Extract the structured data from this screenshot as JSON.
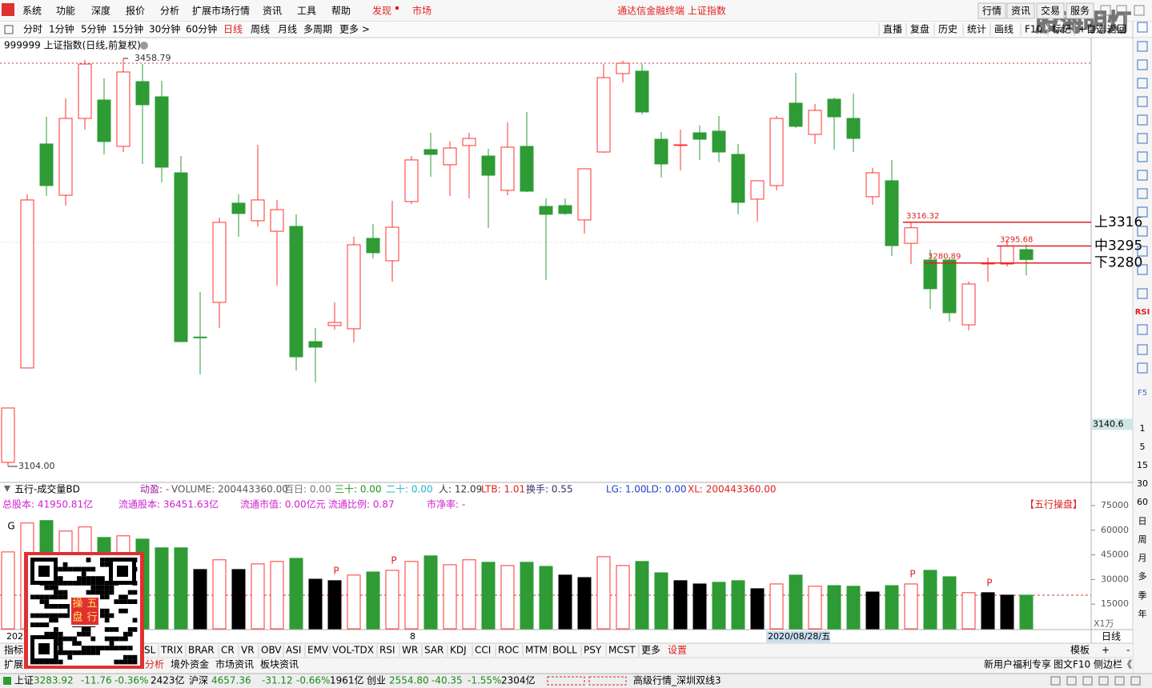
{
  "menu": {
    "items": [
      "系统",
      "功能",
      "深度",
      "报价",
      "分析",
      "扩展市场行情",
      "资讯",
      "工具",
      "帮助"
    ],
    "discover": "发现",
    "market": "市场",
    "title": "通达信金融终端 上证指数",
    "buttons": [
      "行情",
      "资讯",
      "交易",
      "服务"
    ]
  },
  "watermark": "股海明灯",
  "toolbar": {
    "periods": [
      "分时",
      "1分钟",
      "5分钟",
      "15分钟",
      "30分钟",
      "60分钟",
      "日线",
      "周线",
      "月线",
      "多周期",
      "更多 >"
    ],
    "tools": [
      "直播",
      "复盘",
      "历史",
      "统计",
      "画线",
      "F10",
      "标记",
      "+自选",
      "返回"
    ]
  },
  "kline": {
    "title": "999999 上证指数(日线,前复权)",
    "up_color": "#ff3232",
    "down_color": "#2e9b35",
    "open": [
      3107.5,
      3189.6,
      3384.4,
      3339.8,
      3406.6,
      3422.6,
      3382.3,
      3438.6,
      3425.4,
      3359.3,
      3216.5,
      3246.6,
      3332.9,
      3317.6,
      3308.5,
      3312.7,
      3212.5,
      3226.5,
      3223.7,
      3302.3,
      3282.8,
      3334.3,
      3379.5,
      3366.3,
      3383.0,
      3373.9,
      3344.0,
      3382.3,
      3330.1,
      3330.8,
      3318.3,
      3377.4,
      3445.6,
      3447.7,
      3388.5,
      3383.0,
      3394.1,
      3395.5,
      3375.3,
      3336.4,
      3348.2,
      3419.9,
      3392.7,
      3423.3,
      3406.6,
      3338.5,
      3352.4,
      3298.0,
      3283.5,
      3283.5,
      3227.1,
      3280.0,
      3280.0,
      3292.5
    ],
    "high": [
      3154.8,
      3340.5,
      3408.0,
      3424.0,
      3457.5,
      3441.4,
      3458.79,
      3453.9,
      3439.3,
      3373.9,
      3255.7,
      3320.4,
      3340.5,
      3383.7,
      3335.7,
      3323.2,
      3224.4,
      3246.6,
      3303.7,
      3314.8,
      3335.0,
      3373.9,
      3394.1,
      3386.5,
      3394.1,
      3380.2,
      3403.2,
      3412.2,
      3337.1,
      3337.1,
      3362.8,
      3453.9,
      3456.9,
      3453.9,
      3394.8,
      3396.9,
      3400.4,
      3408.7,
      3384.4,
      3353.0,
      3408.7,
      3446.3,
      3419.2,
      3424.7,
      3428.2,
      3363.5,
      3370.5,
      3316.32,
      3292.5,
      3286.3,
      3264.7,
      3285.6,
      3301.0,
      3297.0
    ],
    "low": [
      3104.0,
      3189.6,
      3339.2,
      3330.8,
      3396.9,
      3375.3,
      3377.4,
      3367.0,
      3351.0,
      3212.5,
      3184.0,
      3224.4,
      3303.7,
      3312.7,
      3261.2,
      3187.5,
      3177.1,
      3223.0,
      3211.8,
      3284.9,
      3264.7,
      3332.2,
      3355.9,
      3339.2,
      3337.1,
      3311.3,
      3339.8,
      3342.6,
      3266.1,
      3322.5,
      3306.5,
      3376.7,
      3437.9,
      3410.1,
      3355.2,
      3361.4,
      3370.5,
      3368.4,
      3323.2,
      3316.9,
      3344.0,
      3398.3,
      3384.4,
      3379.5,
      3377.4,
      3331.5,
      3287.0,
      3280.0,
      3241.0,
      3229.9,
      3222.3,
      3264.7,
      3277.9,
      3270.0
    ],
    "close": [
      3154.8,
      3335.7,
      3348.2,
      3406.6,
      3453.9,
      3386.5,
      3447.0,
      3418.5,
      3364.2,
      3212.5,
      3216.0,
      3316.2,
      3323.9,
      3335.7,
      3327.3,
      3199.3,
      3207.7,
      3229.2,
      3296.7,
      3289.8,
      3312.0,
      3370.5,
      3375.3,
      3380.9,
      3389.2,
      3357.2,
      3381.6,
      3343.3,
      3323.2,
      3323.9,
      3362.8,
      3442.1,
      3454.6,
      3412.2,
      3367.0,
      3383.7,
      3388.5,
      3377.4,
      3333.6,
      3352.4,
      3406.6,
      3399.7,
      3413.6,
      3408.0,
      3389.2,
      3359.3,
      3296.0,
      3311.5,
      3258.5,
      3237.6,
      3262.6,
      3280.7,
      3295.68,
      3283.92
    ],
    "max_marker": 3458.79,
    "min_marker": {
      "value": 3104,
      "label": "3104.00"
    },
    "cursor_price": 3140.6,
    "levels": [
      {
        "value": 3316.32,
        "tag": "上3316"
      },
      {
        "value": 3295.68,
        "tag": "中3295"
      },
      {
        "value": 3280.89,
        "tag": "下3280"
      }
    ]
  },
  "volume": {
    "title": "五行-成交量BD",
    "readouts": [
      {
        "text": "动盈: -",
        "color": "#a020a0"
      },
      {
        "text": "VOLUME: 200443360.00",
        "color": "#555555"
      },
      {
        "text": "百日: 0.00",
        "color": "#777777"
      },
      {
        "text": "三十: 0.00",
        "color": "#1a9a1a"
      },
      {
        "text": "二十: 0.00",
        "color": "#22b8c8"
      },
      {
        "text": "人: 12.09",
        "color": "#333333"
      },
      {
        "text": "LTB: 1.01",
        "color": "#e02020"
      },
      {
        "text": "换手: 0.55",
        "color": "#333366"
      },
      {
        "text": "LG: 1.00",
        "color": "#2040d0"
      },
      {
        "text": "LD: 0.00",
        "color": "#2040d0"
      },
      {
        "text": "XL: 200443360.00",
        "color": "#e02020"
      }
    ],
    "info": [
      "总股本: 41950.81亿",
      "流通股本: 36451.63亿",
      "流通市值: 0.00亿元",
      "流通比例: 0.87",
      "市净率: -"
    ],
    "brand": "【五行操盘】",
    "values": [
      46800,
      64400,
      65900,
      59500,
      62000,
      55600,
      56600,
      54600,
      49300,
      49300,
      36100,
      42000,
      36100,
      39500,
      41000,
      42900,
      30200,
      29300,
      32700,
      34600,
      35600,
      41000,
      44400,
      39000,
      42000,
      40500,
      38500,
      40500,
      38000,
      32700,
      31200,
      43900,
      38500,
      41000,
      34100,
      29300,
      27300,
      28300,
      29300,
      24400,
      27300,
      32700,
      25900,
      26300,
      25900,
      22400,
      26300,
      27300,
      35600,
      31700,
      22000,
      22000,
      20500,
      20500
    ],
    "colors": [
      "#ff3232",
      "#ff3232",
      "#2e9b35",
      "#ff3232",
      "#ff3232",
      "#2e9b35",
      "#ff3232",
      "#2e9b35",
      "#2e9b35",
      "#2e9b35",
      "#000000",
      "#ff3232",
      "#000000",
      "#ff3232",
      "#ff3232",
      "#2e9b35",
      "#000000",
      "#000000",
      "#ff3232",
      "#2e9b35",
      "#ff3232",
      "#ff3232",
      "#2e9b35",
      "#ff3232",
      "#ff3232",
      "#2e9b35",
      "#ff3232",
      "#2e9b35",
      "#2e9b35",
      "#000000",
      "#000000",
      "#ff3232",
      "#ff3232",
      "#2e9b35",
      "#2e9b35",
      "#000000",
      "#000000",
      "#2e9b35",
      "#2e9b35",
      "#000000",
      "#ff3232",
      "#2e9b35",
      "#ff3232",
      "#2e9b35",
      "#2e9b35",
      "#000000",
      "#2e9b35",
      "#ff3232",
      "#2e9b35",
      "#2e9b35",
      "#ff3232",
      "#000000",
      "#000000",
      "#2e9b35"
    ],
    "signals": [
      "G",
      null,
      null,
      null,
      null,
      null,
      null,
      null,
      null,
      null,
      null,
      null,
      null,
      null,
      null,
      null,
      null,
      "P",
      null,
      null,
      "P",
      null,
      null,
      null,
      null,
      null,
      null,
      null,
      null,
      null,
      null,
      null,
      null,
      null,
      null,
      null,
      null,
      null,
      null,
      null,
      null,
      null,
      null,
      null,
      null,
      null,
      null,
      "P",
      null,
      null,
      null,
      "P",
      null,
      null
    ],
    "ylim": [
      0,
      75000
    ],
    "yticks": [
      75000,
      60000,
      45000,
      30000,
      15000
    ],
    "unit": "X1万"
  },
  "xaxis": {
    "labels": [
      "202",
      null,
      null,
      null,
      null,
      null,
      null,
      null,
      null,
      null,
      null,
      null,
      null,
      null,
      null,
      null,
      null,
      null,
      null,
      null,
      null,
      "8",
      null,
      null,
      null,
      null,
      null,
      null,
      null,
      null,
      null,
      null,
      null,
      null,
      null,
      null,
      null,
      null,
      null,
      null,
      null,
      null,
      null,
      null,
      null,
      null,
      null,
      null,
      null,
      null,
      null,
      null,
      null,
      null
    ],
    "cursor_date": "2020/08/28/五",
    "period": "日线"
  },
  "qr_badge": [
    "操",
    "五",
    "盘",
    "行"
  ],
  "indicator_tabs": {
    "left": "指标",
    "items": [
      "SL",
      "TRIX",
      "BRAR",
      "CR",
      "VR",
      "OBV",
      "ASI",
      "EMV",
      "VOL-TDX",
      "RSI",
      "WR",
      "SAR",
      "KDJ",
      "CCI",
      "ROC",
      "MTM",
      "BOLL",
      "PSY",
      "MCST",
      "更多"
    ],
    "settings": "设置",
    "right": [
      "模板",
      "+",
      "-"
    ]
  },
  "ext_tabs": {
    "left": "扩展",
    "items": [
      "分析",
      "境外资金",
      "市场资讯",
      "板块资讯"
    ],
    "right": [
      "新用户福利专享",
      "图文F10",
      "侧边栏《"
    ]
  },
  "sidebar": [
    "RSI",
    "F5",
    "1",
    "5",
    "15",
    "30",
    "60",
    "日",
    "周",
    "月",
    "多",
    "季",
    "年"
  ],
  "status": {
    "indices": [
      {
        "name": "上证",
        "price": "3283.92",
        "change": "-11.76",
        "pct": "-0.36%",
        "amount": "2423亿"
      },
      {
        "name": "沪深",
        "price": "4657.36",
        "change": "-31.12",
        "pct": "-0.66%",
        "amount": "1961亿"
      },
      {
        "name": "创业",
        "price": "2554.80",
        "change": "-40.35",
        "pct": "-1.55%",
        "amount": "2304亿"
      }
    ],
    "feed": "高级行情_深圳双线3"
  }
}
